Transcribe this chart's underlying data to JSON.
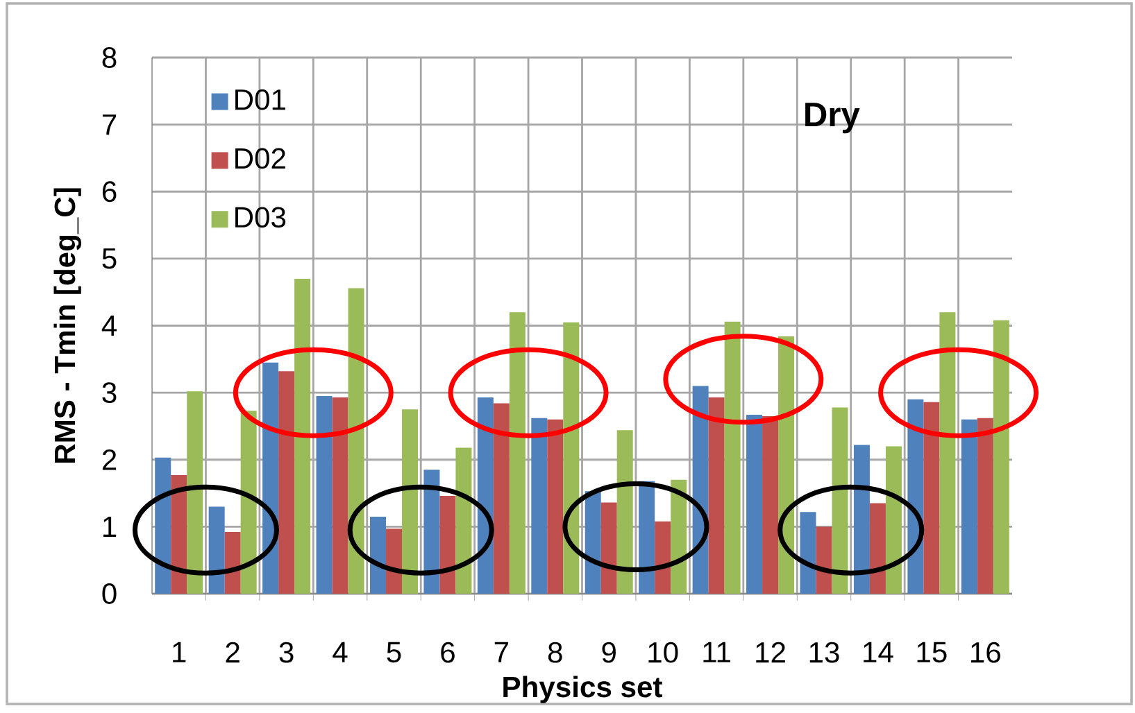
{
  "chart_data": {
    "type": "bar",
    "title": "Dry",
    "xlabel": "Physics set",
    "ylabel": "RMS - Tmin [deg_C]",
    "categories": [
      "1",
      "2",
      "3",
      "4",
      "5",
      "6",
      "7",
      "8",
      "9",
      "10",
      "11",
      "12",
      "13",
      "14",
      "15",
      "16"
    ],
    "series": [
      {
        "name": "D01",
        "color": "#4f81bd",
        "values": [
          2.03,
          1.3,
          3.45,
          2.95,
          1.15,
          1.85,
          2.93,
          2.62,
          1.53,
          1.68,
          3.1,
          2.67,
          1.22,
          2.22,
          2.9,
          2.6
        ]
      },
      {
        "name": "D02",
        "color": "#c0504d",
        "values": [
          1.77,
          0.92,
          3.32,
          2.93,
          0.97,
          1.46,
          2.84,
          2.6,
          1.36,
          1.08,
          2.93,
          2.65,
          1.0,
          1.35,
          2.86,
          2.62
        ]
      },
      {
        "name": "D03",
        "color": "#9bbb59",
        "values": [
          3.02,
          2.73,
          4.7,
          4.56,
          2.75,
          2.18,
          4.2,
          4.05,
          2.44,
          1.7,
          4.06,
          3.84,
          2.78,
          2.2,
          4.2,
          4.08
        ]
      }
    ],
    "ylim": [
      0,
      8
    ],
    "yticks": [
      0,
      1,
      2,
      3,
      4,
      5,
      6,
      7,
      8
    ],
    "grid": true,
    "legend": "top left"
  }
}
